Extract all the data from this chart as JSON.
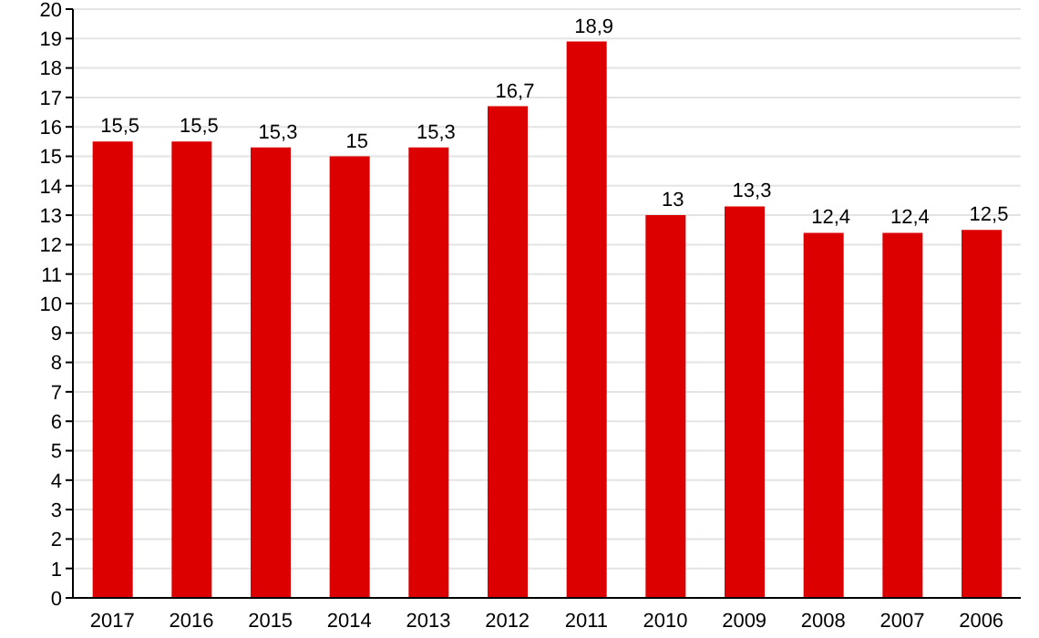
{
  "chart_data": {
    "type": "bar",
    "categories": [
      "2017",
      "2016",
      "2015",
      "2014",
      "2013",
      "2012",
      "2011",
      "2010",
      "2009",
      "2008",
      "2007",
      "2006"
    ],
    "values": [
      15.5,
      15.5,
      15.3,
      15,
      15.3,
      16.7,
      18.9,
      13,
      13.3,
      12.4,
      12.4,
      12.5
    ],
    "value_labels": [
      "15,5",
      "15,5",
      "15,3",
      "15",
      "15,3",
      "16,7",
      "18,9",
      "13",
      "13,3",
      "12,4",
      "12,4",
      "12,5"
    ],
    "color": "#dd0000",
    "ylim": [
      0,
      20
    ],
    "yticks": [
      0,
      1,
      2,
      3,
      4,
      5,
      6,
      7,
      8,
      9,
      10,
      11,
      12,
      13,
      14,
      15,
      16,
      17,
      18,
      19,
      20
    ],
    "grid": "y"
  }
}
